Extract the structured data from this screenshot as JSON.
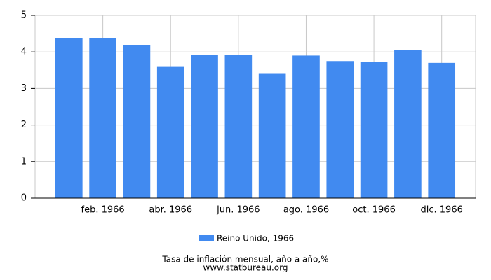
{
  "chart_data": {
    "type": "bar",
    "title": "Tasa de inflación mensual, año a año,%",
    "source": "www.statbureau.org",
    "categories": [
      null,
      "feb. 1966",
      null,
      "abr. 1966",
      null,
      "jun. 1966",
      null,
      "ago. 1966",
      null,
      "oct. 1966",
      null,
      "dic. 1966"
    ],
    "series": [
      {
        "name": "Reino Unido, 1966",
        "color": "#418af0",
        "values": [
          4.37,
          4.37,
          4.18,
          3.59,
          3.92,
          3.92,
          3.4,
          3.9,
          3.75,
          3.73,
          4.05,
          3.7
        ]
      }
    ],
    "ylim": [
      0,
      5
    ],
    "yticks": [
      0,
      1,
      2,
      3,
      4,
      5
    ],
    "grid": true
  }
}
